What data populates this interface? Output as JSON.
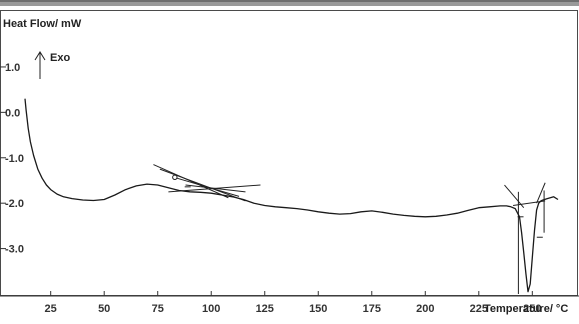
{
  "chart_data": {
    "type": "line",
    "ylabel": "Heat Flow/ mW",
    "xlabel": "Temperature/ °C",
    "exo_label": "Exo",
    "xlim": [
      13,
      262
    ],
    "ylim": [
      -4.0,
      2.1
    ],
    "xticks": [
      25,
      50,
      75,
      100,
      125,
      150,
      175,
      200,
      225,
      250
    ],
    "xtick_labels": [
      "25",
      "50",
      "75",
      "100",
      "125",
      "150",
      "175",
      "200",
      "225",
      "250"
    ],
    "yticks": [
      1.0,
      0.0,
      -1.0,
      -2.0,
      -3.0
    ],
    "ytick_labels": [
      "1.0",
      "0.0",
      "-1.0",
      "-2.0",
      "-3.0"
    ],
    "grid": false,
    "series": [
      {
        "color": "#1a1a1a",
        "x": [
          13,
          13.5,
          14.5,
          15.5,
          17,
          19,
          21,
          23,
          25,
          28,
          31,
          35,
          40,
          45,
          50,
          55,
          60,
          65,
          70,
          75,
          80,
          85,
          90,
          95,
          100,
          105,
          110,
          115,
          120,
          125,
          130,
          135,
          140,
          145,
          150,
          155,
          160,
          165,
          170,
          175,
          180,
          185,
          190,
          195,
          200,
          205,
          210,
          215,
          220,
          225,
          230,
          235,
          238,
          240,
          242,
          244,
          245,
          246,
          247,
          248,
          249,
          250,
          251,
          252,
          253,
          254,
          255,
          257,
          260,
          262
        ],
        "y": [
          0.3,
          0.05,
          -0.35,
          -0.65,
          -0.95,
          -1.25,
          -1.45,
          -1.6,
          -1.7,
          -1.8,
          -1.86,
          -1.9,
          -1.93,
          -1.94,
          -1.92,
          -1.82,
          -1.7,
          -1.62,
          -1.58,
          -1.6,
          -1.66,
          -1.72,
          -1.75,
          -1.76,
          -1.78,
          -1.82,
          -1.86,
          -1.92,
          -2.0,
          -2.05,
          -2.08,
          -2.1,
          -2.12,
          -2.15,
          -2.19,
          -2.22,
          -2.24,
          -2.23,
          -2.19,
          -2.17,
          -2.2,
          -2.24,
          -2.27,
          -2.29,
          -2.3,
          -2.29,
          -2.26,
          -2.22,
          -2.16,
          -2.1,
          -2.08,
          -2.06,
          -2.06,
          -2.08,
          -2.12,
          -2.3,
          -2.65,
          -3.1,
          -3.55,
          -3.95,
          -3.78,
          -3.2,
          -2.6,
          -2.15,
          -2.0,
          -1.95,
          -1.93,
          -1.9,
          -1.86,
          -1.92
        ]
      }
    ],
    "annotations": {
      "tangents": [
        {
          "x": [
            73,
            108
          ],
          "y": [
            -1.15,
            -1.88
          ]
        },
        {
          "x": [
            76,
            116
          ],
          "y": [
            -1.25,
            -1.95
          ]
        },
        {
          "x": [
            80,
            123
          ],
          "y": [
            -1.75,
            -1.6
          ]
        },
        {
          "x": [
            84,
            113
          ],
          "y": [
            -1.45,
            -1.85
          ]
        },
        {
          "x": [
            88,
            116
          ],
          "y": [
            -1.6,
            -1.75
          ]
        },
        {
          "x": [
            237,
            246
          ],
          "y": [
            -1.6,
            -2.1
          ]
        },
        {
          "x": [
            252,
            256
          ],
          "y": [
            -2.0,
            -1.55
          ]
        }
      ],
      "baselines": [
        {
          "x": [
            241,
            256
          ],
          "y": [
            -2.05,
            -1.95
          ]
        }
      ],
      "vlines": [
        {
          "x": [
            243.5,
            243.5
          ],
          "y": [
            -1.75,
            -4.0
          ]
        },
        {
          "x": [
            255.5,
            255.5
          ],
          "y": [
            -1.72,
            -2.65
          ]
        }
      ],
      "markers": [
        {
          "x": 244.5,
          "y": -2.3
        },
        {
          "x": 253.5,
          "y": -2.75
        },
        {
          "x": 89,
          "y": -1.64
        }
      ],
      "circles": [
        {
          "x": 83,
          "y": -1.43
        }
      ]
    }
  }
}
